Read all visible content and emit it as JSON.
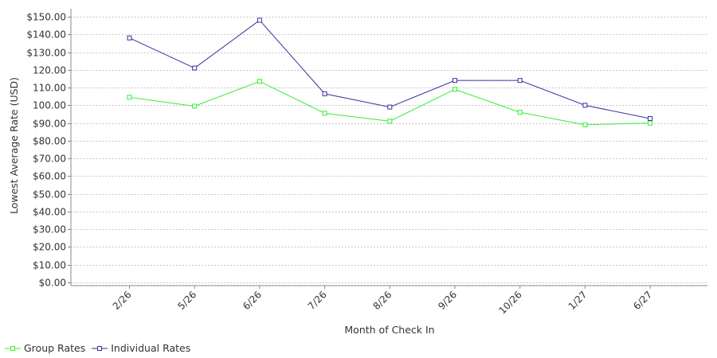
{
  "chart_data": {
    "type": "line",
    "xlabel": "Month of Check In",
    "ylabel": "Lowest Average Rate (USD)",
    "categories": [
      "2/26",
      "5/26",
      "6/26",
      "7/26",
      "8/26",
      "9/26",
      "10/26",
      "1/27",
      "6/27"
    ],
    "ylim": [
      0,
      155
    ],
    "yticks": [
      0,
      10,
      20,
      30,
      40,
      50,
      60,
      70,
      80,
      90,
      100,
      110,
      120,
      130,
      140,
      150
    ],
    "ytick_labels": [
      "$0.00",
      "$10.00",
      "$20.00",
      "$30.00",
      "$40.00",
      "$50.00",
      "$60.00",
      "$70.00",
      "$80.00",
      "$90.00",
      "100.00",
      "110.00",
      "120.00",
      "$130.00",
      "$140.00",
      "$150.00"
    ],
    "grid": true,
    "legend_position": "bottom-left",
    "series": [
      {
        "name": "Group Rates",
        "color": "#33ee33",
        "values": [
          104.5,
          99.5,
          113.5,
          95.5,
          91,
          109,
          96,
          89,
          90
        ]
      },
      {
        "name": "Individual Rates",
        "color": "#333399",
        "values": [
          138,
          121,
          148,
          106.5,
          99,
          114,
          114,
          100,
          92.5
        ]
      }
    ]
  }
}
